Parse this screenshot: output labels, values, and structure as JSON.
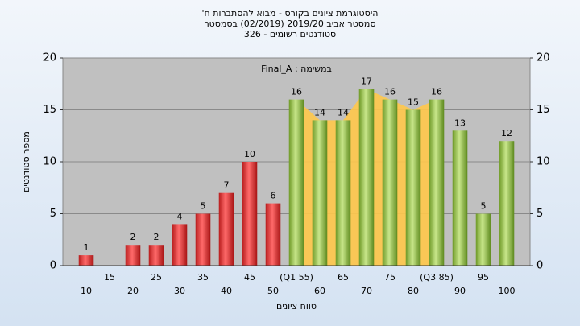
{
  "chart_data": {
    "type": "bar",
    "title": "היסטוגרמת ציונים בקורס - מבוא להסתברות ח'",
    "subtitle": "סמסטר אביב 2019/20  (02/2019)  בסמסטר",
    "subtitle2": "סטודנטים רשומים - 326",
    "annotation": "במשימה : Final_A",
    "x_label": "טווח ציונים",
    "y_label": "מספר סטודנטים",
    "categories": [
      "10",
      "15",
      "20",
      "25",
      "30",
      "35",
      "40",
      "45",
      "50",
      "(Q1 55)",
      "60",
      "65",
      "70",
      "75",
      "80",
      "(Q3 85)",
      "90",
      "95",
      "100"
    ],
    "values": [
      1,
      0,
      2,
      2,
      4,
      5,
      7,
      10,
      6,
      16,
      14,
      14,
      17,
      16,
      15,
      16,
      13,
      5,
      12
    ],
    "value_labels": [
      "1",
      null,
      "2",
      "2",
      "4",
      "5",
      "7",
      "10",
      "6",
      "16",
      "14",
      "14",
      "17",
      "16",
      "15",
      "16",
      "13",
      "5",
      "12"
    ],
    "colors": [
      "red",
      "red",
      "red",
      "red",
      "red",
      "red",
      "red",
      "red",
      "red",
      "green",
      "green",
      "green",
      "green",
      "green",
      "green",
      "green",
      "green",
      "green",
      "green"
    ],
    "ylim": [
      0,
      20
    ],
    "yticks": [
      0,
      5,
      10,
      15,
      20
    ],
    "y2lim": [
      0,
      20
    ],
    "y2ticks": [
      0,
      5,
      10,
      15,
      20
    ],
    "grid": true
  }
}
